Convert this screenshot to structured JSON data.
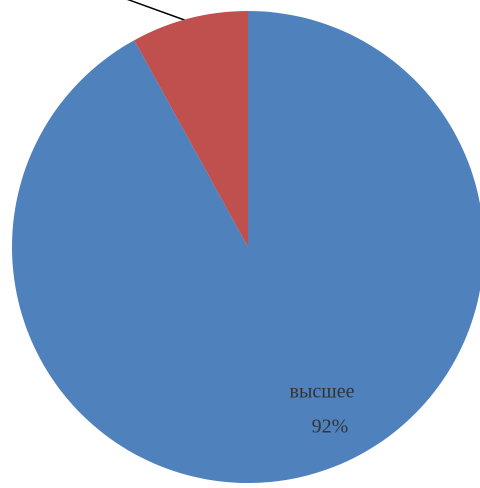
{
  "chart_data": {
    "type": "pie",
    "categories": [
      "высшее",
      null
    ],
    "values": [
      92,
      8
    ],
    "value_labels": [
      "92%",
      null
    ],
    "colors": [
      "#4f81bd",
      "#c0504d"
    ]
  }
}
